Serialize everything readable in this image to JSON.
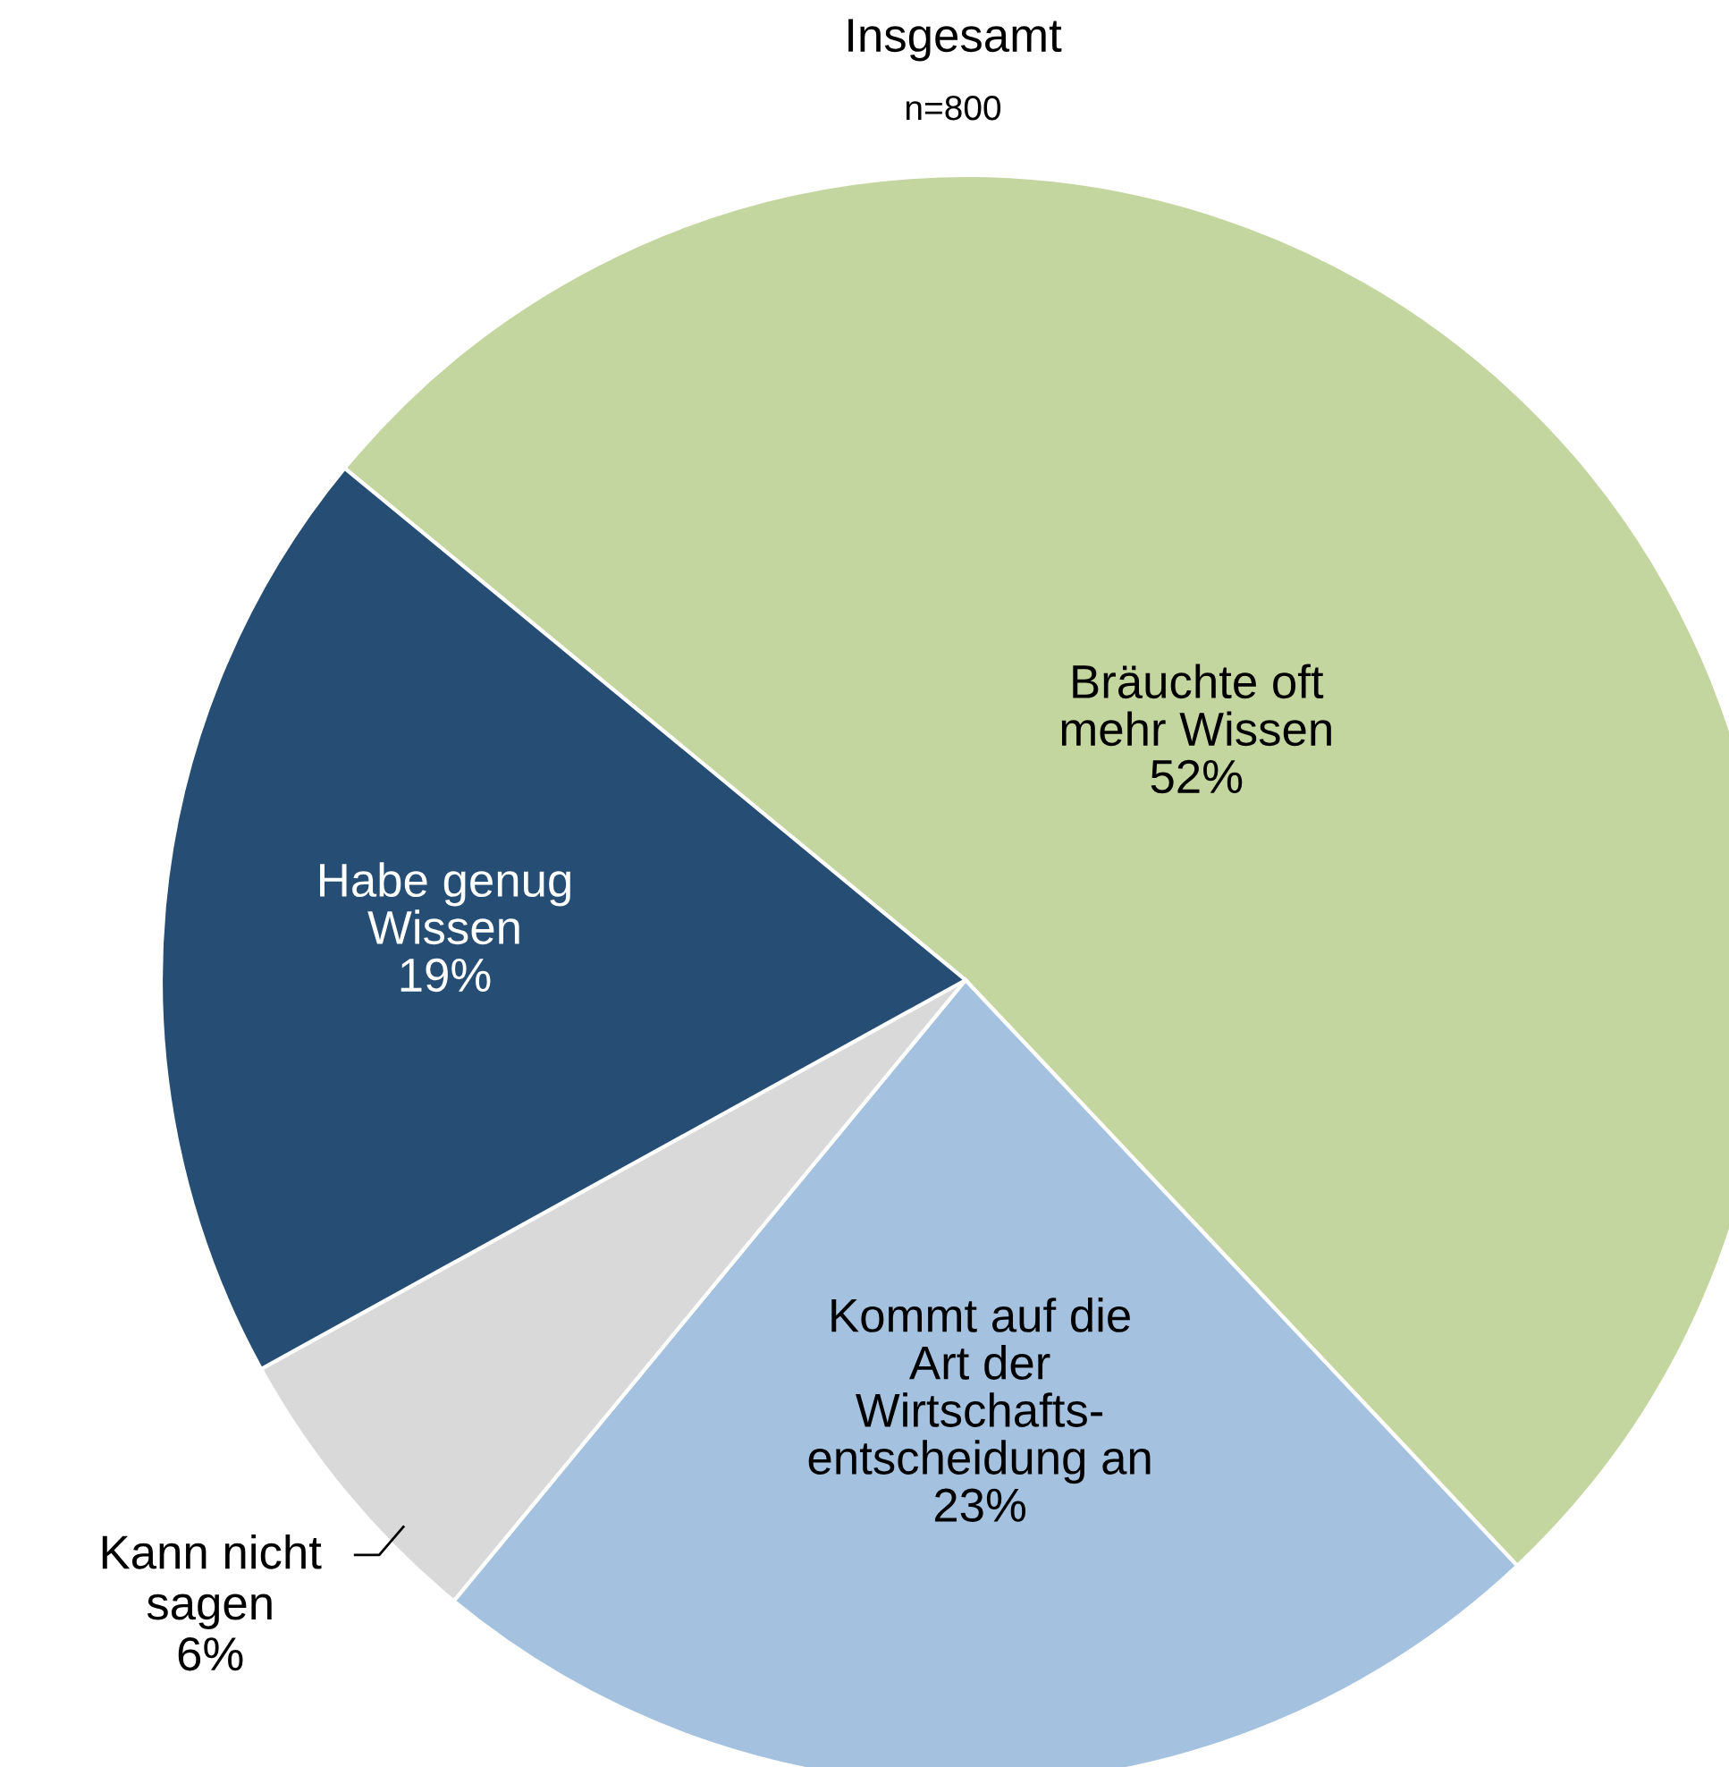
{
  "chart_data": {
    "type": "pie",
    "title": "Insgesamt",
    "subtitle": "n=800",
    "categories": [
      "Bräuchte oft\nmehr Wissen",
      "Kommt auf die\nArt der\nWirtschafts-\nentscheidung an",
      "Kann nicht\nsagen",
      "Habe genug\nWissen"
    ],
    "values": [
      52,
      23,
      6,
      19
    ],
    "value_labels": [
      "52%",
      "23%",
      "6%",
      "19%"
    ],
    "colors": [
      "#c4d69f",
      "#a4c2df",
      "#d9d9d9",
      "#264d73"
    ],
    "legend": false
  }
}
